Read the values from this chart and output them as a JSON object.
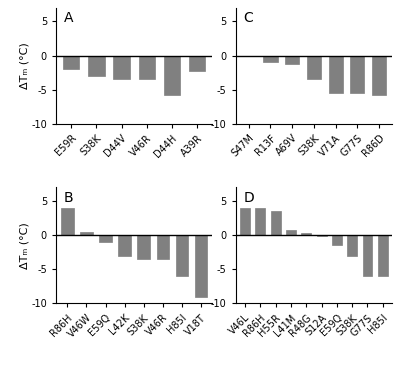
{
  "panel_A": {
    "label": "A",
    "categories": [
      "E59R",
      "S38K",
      "D44V",
      "V46R",
      "D44H",
      "A39R"
    ],
    "values": [
      -2.0,
      -3.0,
      -3.5,
      -3.5,
      -5.8,
      -2.2
    ],
    "ylim": [
      -10,
      7
    ],
    "yticks": [
      -10,
      -5,
      0,
      5
    ],
    "ylabel": "ΔTₘ (°C)"
  },
  "panel_B": {
    "label": "B",
    "categories": [
      "R86H",
      "V46W",
      "E59Q",
      "L42K",
      "S38K",
      "V46R",
      "H85I",
      "V18T"
    ],
    "values": [
      4.0,
      0.5,
      -1.0,
      -3.0,
      -3.5,
      -3.5,
      -6.0,
      -9.0
    ],
    "ylim": [
      -10,
      7
    ],
    "yticks": [
      -10,
      -5,
      0,
      5
    ],
    "ylabel": "ΔTₘ (°C)"
  },
  "panel_C": {
    "label": "C",
    "categories": [
      "S47M",
      "R13F",
      "A69V",
      "S38K",
      "V71A",
      "G77S",
      "R86D"
    ],
    "values": [
      0.0,
      -1.0,
      -1.2,
      -3.5,
      -5.5,
      -5.5,
      -5.8
    ],
    "ylim": [
      -10,
      7
    ],
    "yticks": [
      -10,
      -5,
      0,
      5
    ],
    "ylabel": ""
  },
  "panel_D": {
    "label": "D",
    "categories": [
      "V46L",
      "R86H",
      "H55R",
      "L41M",
      "R48G",
      "S12A",
      "E59Q",
      "S38K",
      "G77S",
      "H85I"
    ],
    "values": [
      4.0,
      4.0,
      3.5,
      0.8,
      0.3,
      -0.1,
      -1.5,
      -3.0,
      -6.0,
      -6.0
    ],
    "ylim": [
      -10,
      7
    ],
    "yticks": [
      -10,
      -5,
      0,
      5
    ],
    "ylabel": ""
  },
  "bar_color": "#808080",
  "bar_edge_color": "#808080",
  "background_color": "#ffffff",
  "tick_fontsize": 7,
  "label_fontsize": 8,
  "panel_label_fontsize": 10
}
